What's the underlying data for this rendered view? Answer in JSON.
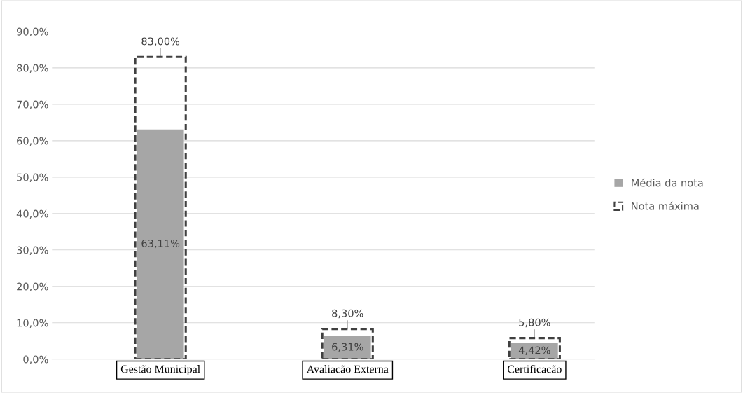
{
  "chart_data": {
    "type": "bar",
    "categories": [
      "Gestão Municipal",
      "Avaliacão Externa",
      "Certificacão"
    ],
    "series": [
      {
        "name": "Média da nota",
        "color": "#a6a6a6",
        "values": [
          63.11,
          6.31,
          4.42
        ],
        "value_labels": [
          "63,11%",
          "6,31%",
          "4,42%"
        ]
      },
      {
        "name": "Nota máxima",
        "color": "#404040",
        "values": [
          83.0,
          8.3,
          5.8
        ],
        "value_labels": [
          "83,00%",
          "8,30%",
          "5,80%"
        ],
        "line_style": "dashed"
      }
    ],
    "ylim": [
      0,
      90
    ],
    "yticks": [
      {
        "value": 0,
        "label": "0,0%"
      },
      {
        "value": 10,
        "label": "10,0%"
      },
      {
        "value": 20,
        "label": "20,0%"
      },
      {
        "value": 30,
        "label": "30,0%"
      },
      {
        "value": 40,
        "label": "40,0%"
      },
      {
        "value": 50,
        "label": "50,0%"
      },
      {
        "value": 60,
        "label": "60,0%"
      },
      {
        "value": 70,
        "label": "70,0%"
      },
      {
        "value": 80,
        "label": "80,0%"
      },
      {
        "value": 90,
        "label": "90,0%"
      }
    ],
    "grid": "y",
    "legend": "right"
  }
}
